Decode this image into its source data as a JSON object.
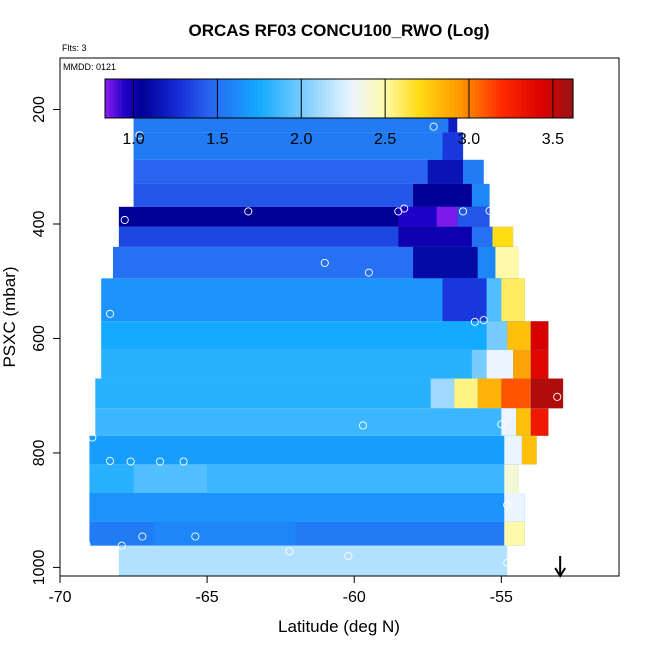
{
  "chart_data": {
    "type": "heatmap",
    "title": "ORCAS RF03 CONCU100_RWO (Log)",
    "subtitle_flts": "Flts: 3",
    "subtitle_mmdd": "MMDD: 0121",
    "xlabel": "Latitude (deg N)",
    "ylabel": "PSXC (mbar)",
    "xlim": [
      -70,
      -51
    ],
    "ylim": [
      1015,
      110
    ],
    "y_reversed": true,
    "x_ticks": [
      -70,
      -65,
      -60,
      -55
    ],
    "y_ticks": [
      200,
      400,
      600,
      800,
      1000
    ],
    "colorbar": {
      "range": [
        0.83,
        3.62
      ],
      "ticks": [
        1.0,
        1.5,
        2.0,
        2.5,
        3.0,
        3.5
      ],
      "tick_labels": [
        "1.0",
        "1.5",
        "2.0",
        "2.5",
        "3.0",
        "3.5"
      ]
    },
    "rows": [
      {
        "p0": 162,
        "p1": 192,
        "lat0": -66.8,
        "lat1": -56.5,
        "value": 1.55,
        "anomalies": [
          [
            -57.1,
            -56.5,
            1.3
          ]
        ]
      },
      {
        "p0": 192,
        "p1": 240,
        "lat0": -67.5,
        "lat1": -56.5,
        "value": 1.55,
        "anomalies": [
          [
            -56.8,
            -56.5,
            1.2
          ]
        ]
      },
      {
        "p0": 240,
        "p1": 288,
        "lat0": -67.5,
        "lat1": -56.3,
        "value": 1.55,
        "anomalies": [
          [
            -57.0,
            -56.3,
            1.3
          ]
        ]
      },
      {
        "p0": 288,
        "p1": 330,
        "lat0": -67.5,
        "lat1": -55.6,
        "value": 1.45,
        "anomalies": [
          [
            -57.5,
            -56.3,
            1.15
          ],
          [
            -56.3,
            -55.6,
            1.55
          ]
        ]
      },
      {
        "p0": 330,
        "p1": 370,
        "lat0": -67.5,
        "lat1": -55.4,
        "value": 1.4,
        "anomalies": [
          [
            -58.0,
            -56.0,
            1.05
          ],
          [
            -56.0,
            -55.4,
            1.6
          ]
        ]
      },
      {
        "p0": 370,
        "p1": 405,
        "lat0": -68.0,
        "lat1": -55.4,
        "value": 1.05,
        "anomalies": [
          [
            -58.5,
            -57.2,
            0.95
          ],
          [
            -57.2,
            -56.5,
            0.85
          ],
          [
            -56.5,
            -55.4,
            1.4
          ]
        ]
      },
      {
        "p0": 405,
        "p1": 440,
        "lat0": -68.0,
        "lat1": -54.6,
        "value": 1.35,
        "anomalies": [
          [
            -58.5,
            -56.0,
            1.0
          ],
          [
            -56.0,
            -55.3,
            1.5
          ],
          [
            -55.3,
            -54.6,
            2.7
          ]
        ]
      },
      {
        "p0": 440,
        "p1": 495,
        "lat0": -68.2,
        "lat1": -54.4,
        "value": 1.5,
        "anomalies": [
          [
            -58.0,
            -55.8,
            1.1
          ],
          [
            -55.8,
            -55.2,
            1.6
          ],
          [
            -55.2,
            -54.4,
            2.5
          ]
        ]
      },
      {
        "p0": 495,
        "p1": 570,
        "lat0": -68.6,
        "lat1": -54.2,
        "value": 1.65,
        "anomalies": [
          [
            -57.0,
            -55.5,
            1.3
          ],
          [
            -55.5,
            -55.0,
            1.9
          ],
          [
            -55.0,
            -54.2,
            2.6
          ]
        ]
      },
      {
        "p0": 570,
        "p1": 620,
        "lat0": -68.6,
        "lat1": -53.4,
        "value": 1.75,
        "anomalies": [
          [
            -55.5,
            -54.8,
            2.0
          ],
          [
            -54.8,
            -54.0,
            2.8
          ],
          [
            -54.0,
            -53.4,
            3.45
          ]
        ]
      },
      {
        "p0": 620,
        "p1": 670,
        "lat0": -68.6,
        "lat1": -53.4,
        "value": 1.8,
        "anomalies": [
          [
            -56.0,
            -55.5,
            2.0
          ],
          [
            -55.5,
            -54.6,
            2.3
          ],
          [
            -54.6,
            -54.0,
            2.9
          ],
          [
            -54.0,
            -53.4,
            3.4
          ]
        ]
      },
      {
        "p0": 670,
        "p1": 722,
        "lat0": -68.8,
        "lat1": -52.9,
        "value": 1.8,
        "anomalies": [
          [
            -57.4,
            -56.6,
            2.1
          ],
          [
            -56.6,
            -55.8,
            2.55
          ],
          [
            -55.8,
            -55.0,
            2.85
          ],
          [
            -55.0,
            -54.0,
            3.1
          ],
          [
            -54.0,
            -52.9,
            3.55
          ]
        ]
      },
      {
        "p0": 722,
        "p1": 770,
        "lat0": -68.8,
        "lat1": -53.4,
        "value": 1.85,
        "anomalies": [
          [
            -55.0,
            -54.5,
            2.3
          ],
          [
            -54.5,
            -54.0,
            2.8
          ],
          [
            -54.0,
            -53.4,
            3.3
          ]
        ]
      },
      {
        "p0": 770,
        "p1": 820,
        "lat0": -69.0,
        "lat1": -53.8,
        "value": 1.7,
        "anomalies": [
          [
            -54.9,
            -54.3,
            2.3
          ],
          [
            -54.3,
            -53.8,
            2.8
          ]
        ]
      },
      {
        "p0": 820,
        "p1": 870,
        "lat0": -69.0,
        "lat1": -54.4,
        "value": 1.8,
        "anomalies": [
          [
            -67.5,
            -65.0,
            1.9
          ],
          [
            -65.0,
            -54.9,
            1.85
          ],
          [
            -54.9,
            -54.4,
            2.4
          ]
        ]
      },
      {
        "p0": 870,
        "p1": 920,
        "lat0": -69.0,
        "lat1": -54.2,
        "value": 1.65,
        "anomalies": [
          [
            -54.9,
            -54.2,
            2.3
          ]
        ]
      },
      {
        "p0": 920,
        "p1": 962,
        "lat0": -69.0,
        "lat1": -54.2,
        "value": 1.55,
        "anomalies": [
          [
            -66.8,
            -62.0,
            1.6
          ],
          [
            -54.9,
            -54.2,
            2.5
          ]
        ]
      },
      {
        "p0": 962,
        "p1": 1015,
        "lat0": -68.0,
        "lat1": -54.8,
        "value": 2.15,
        "anomalies": []
      }
    ],
    "points": [
      {
        "lat": -66.4,
        "p": 180
      },
      {
        "lat": -58.1,
        "p": 180
      },
      {
        "lat": -57.6,
        "p": 180
      },
      {
        "lat": -56.7,
        "p": 180
      },
      {
        "lat": -67.3,
        "p": 245
      },
      {
        "lat": -57.3,
        "p": 230
      },
      {
        "lat": -67.8,
        "p": 393
      },
      {
        "lat": -63.6,
        "p": 378
      },
      {
        "lat": -58.5,
        "p": 378
      },
      {
        "lat": -58.3,
        "p": 373
      },
      {
        "lat": -56.3,
        "p": 378
      },
      {
        "lat": -55.4,
        "p": 377
      },
      {
        "lat": -61.0,
        "p": 468
      },
      {
        "lat": -59.5,
        "p": 485
      },
      {
        "lat": -68.3,
        "p": 557
      },
      {
        "lat": -55.9,
        "p": 571
      },
      {
        "lat": -55.6,
        "p": 568
      },
      {
        "lat": -53.1,
        "p": 702
      },
      {
        "lat": -59.7,
        "p": 752
      },
      {
        "lat": -55.0,
        "p": 750
      },
      {
        "lat": -68.9,
        "p": 773
      },
      {
        "lat": -68.3,
        "p": 814
      },
      {
        "lat": -67.6,
        "p": 815
      },
      {
        "lat": -66.6,
        "p": 815
      },
      {
        "lat": -65.8,
        "p": 815
      },
      {
        "lat": -54.8,
        "p": 891
      },
      {
        "lat": -67.2,
        "p": 946
      },
      {
        "lat": -65.4,
        "p": 946
      },
      {
        "lat": -69.1,
        "p": 960
      },
      {
        "lat": -67.9,
        "p": 962
      },
      {
        "lat": -62.2,
        "p": 972
      },
      {
        "lat": -60.2,
        "p": 980
      },
      {
        "lat": -54.8,
        "p": 992
      }
    ],
    "arrow": {
      "lat": -53.0
    }
  }
}
